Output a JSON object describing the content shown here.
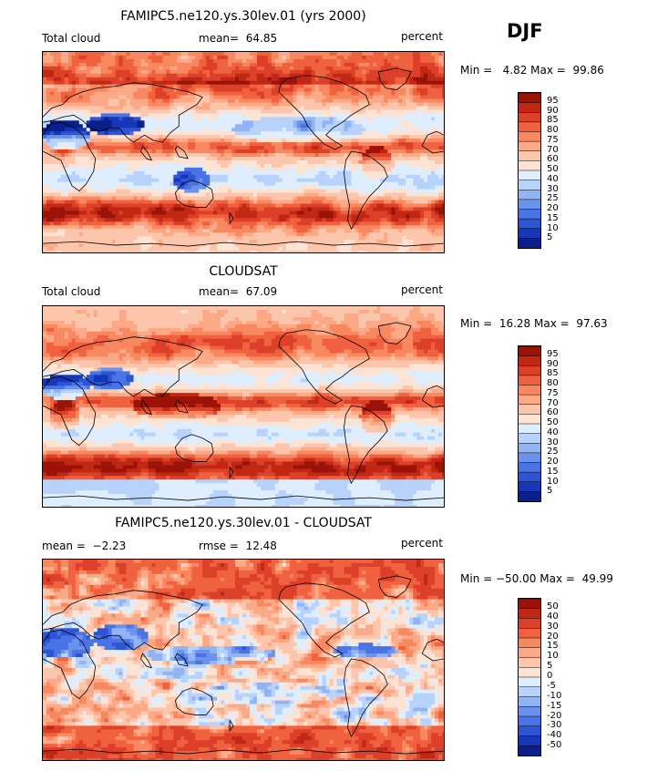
{
  "season": "DJF",
  "colors": {
    "warm": [
      "#fde3d3",
      "#fcc6ad",
      "#fba987",
      "#f88860",
      "#f0623f",
      "#dc4028",
      "#c02814",
      "#9b1308"
    ],
    "cool": [
      "#deeeff",
      "#b7d2fb",
      "#92b4f4",
      "#6b92ec",
      "#4a73e4",
      "#2d55d6",
      "#1737b8",
      "#0a1f8c"
    ],
    "white": "#ffffff"
  },
  "chart_data": [
    {
      "type": "contour-map",
      "title": "FAMIPC5.ne120.ys.30lev.01 (yrs 2000)",
      "left_label": "Total cloud",
      "stat_label": "mean=",
      "stat_value": "64.85",
      "units": "percent",
      "min_label": "Min =",
      "min_value": "4.82",
      "max_label": "Max =",
      "max_value": "99.86",
      "levels": [
        95,
        90,
        85,
        80,
        75,
        70,
        60,
        50,
        40,
        30,
        25,
        20,
        15,
        10,
        5
      ],
      "mean": 64.85
    },
    {
      "type": "contour-map",
      "title": "CLOUDSAT",
      "left_label": "Total cloud",
      "stat_label": "mean=",
      "stat_value": "67.09",
      "units": "percent",
      "min_label": "Min =",
      "min_value": "16.28",
      "max_label": "Max =",
      "max_value": "97.63",
      "levels": [
        95,
        90,
        85,
        80,
        75,
        70,
        60,
        50,
        40,
        30,
        25,
        20,
        15,
        10,
        5
      ],
      "mean": 67.09
    },
    {
      "type": "contour-map",
      "title": "FAMIPC5.ne120.ys.30lev.01 - CLOUDSAT",
      "left_label": "mean =",
      "left_value": "−2.23",
      "stat_label": "rmse =",
      "stat_value": "12.48",
      "units": "percent",
      "min_label": "Min =",
      "min_value": "−50.00",
      "max_label": "Max =",
      "max_value": "49.99",
      "levels": [
        50,
        40,
        30,
        20,
        15,
        10,
        5,
        0,
        -5,
        -10,
        -15,
        -20,
        -30,
        -40,
        -50
      ],
      "mean": -2.23
    }
  ]
}
